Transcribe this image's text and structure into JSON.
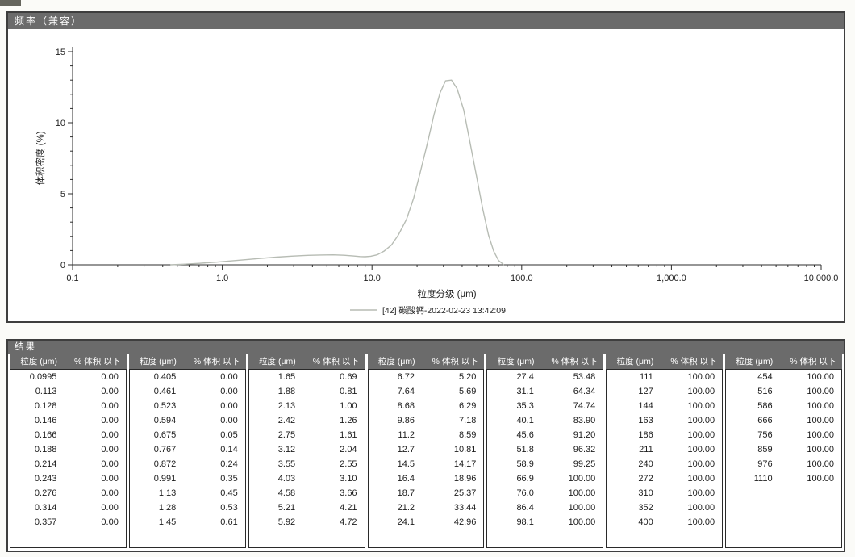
{
  "colors": {
    "header_bg": "#6b6b6b",
    "curve": "#b7bcb4",
    "axis": "#2e2e2e"
  },
  "frequency_panel": {
    "title": "频率（兼容）"
  },
  "chart_data": {
    "type": "line",
    "title": "频率（兼容）",
    "xlabel": "粒度分级 (μm)",
    "ylabel": "体积密度 (%)",
    "x_scale": "log",
    "xlim": [
      0.1,
      10000
    ],
    "ylim": [
      0,
      15
    ],
    "yticks": [
      0,
      5,
      10,
      15
    ],
    "xticks": [
      {
        "v": 0.1,
        "label": "0.1"
      },
      {
        "v": 1,
        "label": "1.0"
      },
      {
        "v": 10,
        "label": "10.0"
      },
      {
        "v": 100,
        "label": "100.0"
      },
      {
        "v": 1000,
        "label": "1,000.0"
      },
      {
        "v": 10000,
        "label": "10,000.0"
      }
    ],
    "legend": "[42] 碳酸钙-2022-02-23 13:42:09",
    "grid": false,
    "legend_position": "bottom-center",
    "series": [
      {
        "name": "[42] 碳酸钙-2022-02-23 13:42:09",
        "color": "#b7bcb4",
        "x": [
          0.45,
          0.55,
          0.7,
          0.9,
          1.1,
          1.4,
          1.8,
          2.3,
          2.9,
          3.6,
          4.5,
          5.5,
          6.5,
          7.5,
          8.3,
          9.0,
          9.8,
          10.8,
          12,
          13.5,
          15,
          17,
          19,
          21,
          23.5,
          26,
          28.5,
          31,
          34,
          37,
          41,
          45,
          50,
          55,
          60,
          65,
          70,
          76
        ],
        "y": [
          0.0,
          0.04,
          0.1,
          0.18,
          0.26,
          0.35,
          0.45,
          0.54,
          0.61,
          0.66,
          0.69,
          0.7,
          0.67,
          0.62,
          0.58,
          0.57,
          0.6,
          0.7,
          0.95,
          1.4,
          2.1,
          3.2,
          4.7,
          6.5,
          8.6,
          10.6,
          12.1,
          12.95,
          13.0,
          12.4,
          10.9,
          8.7,
          6.2,
          3.9,
          2.1,
          0.95,
          0.3,
          0.0
        ]
      }
    ]
  },
  "results_panel": {
    "title": "结果",
    "col_header_size": "粒度 (μm)",
    "col_header_pct": "% 体积 以下",
    "groups": [
      {
        "rows": [
          [
            "0.0995",
            "0.00"
          ],
          [
            "0.113",
            "0.00"
          ],
          [
            "0.128",
            "0.00"
          ],
          [
            "0.146",
            "0.00"
          ],
          [
            "0.166",
            "0.00"
          ],
          [
            "0.188",
            "0.00"
          ],
          [
            "0.214",
            "0.00"
          ],
          [
            "0.243",
            "0.00"
          ],
          [
            "0.276",
            "0.00"
          ],
          [
            "0.314",
            "0.00"
          ],
          [
            "0.357",
            "0.00"
          ]
        ]
      },
      {
        "rows": [
          [
            "0.405",
            "0.00"
          ],
          [
            "0.461",
            "0.00"
          ],
          [
            "0.523",
            "0.00"
          ],
          [
            "0.594",
            "0.00"
          ],
          [
            "0.675",
            "0.05"
          ],
          [
            "0.767",
            "0.14"
          ],
          [
            "0.872",
            "0.24"
          ],
          [
            "0.991",
            "0.35"
          ],
          [
            "1.13",
            "0.45"
          ],
          [
            "1.28",
            "0.53"
          ],
          [
            "1.45",
            "0.61"
          ]
        ]
      },
      {
        "rows": [
          [
            "1.65",
            "0.69"
          ],
          [
            "1.88",
            "0.81"
          ],
          [
            "2.13",
            "1.00"
          ],
          [
            "2.42",
            "1.26"
          ],
          [
            "2.75",
            "1.61"
          ],
          [
            "3.12",
            "2.04"
          ],
          [
            "3.55",
            "2.55"
          ],
          [
            "4.03",
            "3.10"
          ],
          [
            "4.58",
            "3.66"
          ],
          [
            "5.21",
            "4.21"
          ],
          [
            "5.92",
            "4.72"
          ]
        ]
      },
      {
        "rows": [
          [
            "6.72",
            "5.20"
          ],
          [
            "7.64",
            "5.69"
          ],
          [
            "8.68",
            "6.29"
          ],
          [
            "9.86",
            "7.18"
          ],
          [
            "11.2",
            "8.59"
          ],
          [
            "12.7",
            "10.81"
          ],
          [
            "14.5",
            "14.17"
          ],
          [
            "16.4",
            "18.96"
          ],
          [
            "18.7",
            "25.37"
          ],
          [
            "21.2",
            "33.44"
          ],
          [
            "24.1",
            "42.96"
          ]
        ]
      },
      {
        "rows": [
          [
            "27.4",
            "53.48"
          ],
          [
            "31.1",
            "64.34"
          ],
          [
            "35.3",
            "74.74"
          ],
          [
            "40.1",
            "83.90"
          ],
          [
            "45.6",
            "91.20"
          ],
          [
            "51.8",
            "96.32"
          ],
          [
            "58.9",
            "99.25"
          ],
          [
            "66.9",
            "100.00"
          ],
          [
            "76.0",
            "100.00"
          ],
          [
            "86.4",
            "100.00"
          ],
          [
            "98.1",
            "100.00"
          ]
        ]
      },
      {
        "rows": [
          [
            "111",
            "100.00"
          ],
          [
            "127",
            "100.00"
          ],
          [
            "144",
            "100.00"
          ],
          [
            "163",
            "100.00"
          ],
          [
            "186",
            "100.00"
          ],
          [
            "211",
            "100.00"
          ],
          [
            "240",
            "100.00"
          ],
          [
            "272",
            "100.00"
          ],
          [
            "310",
            "100.00"
          ],
          [
            "352",
            "100.00"
          ],
          [
            "400",
            "100.00"
          ]
        ]
      },
      {
        "rows": [
          [
            "454",
            "100.00"
          ],
          [
            "516",
            "100.00"
          ],
          [
            "586",
            "100.00"
          ],
          [
            "666",
            "100.00"
          ],
          [
            "756",
            "100.00"
          ],
          [
            "859",
            "100.00"
          ],
          [
            "976",
            "100.00"
          ],
          [
            "1110",
            "100.00"
          ]
        ]
      }
    ]
  }
}
